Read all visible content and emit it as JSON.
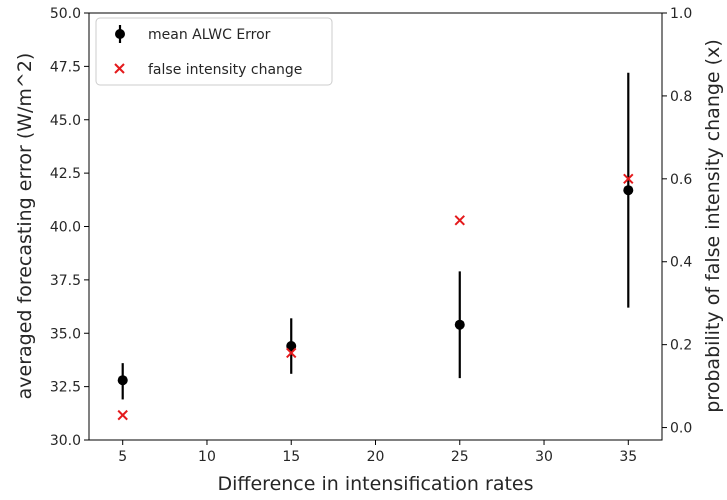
{
  "chart_data": {
    "type": "scatter",
    "xlabel": "Difference in intensification rates",
    "ylabel_left": "averaged forecasting error (W/m^2)",
    "ylabel_right": "probability of false intensity change (x)",
    "xlim": [
      3,
      37
    ],
    "ylim_left": [
      30.0,
      50.0
    ],
    "ylim_right": [
      -0.03,
      1.0
    ],
    "xticks": [
      5,
      10,
      15,
      20,
      25,
      30,
      35
    ],
    "yticks_left": [
      30.0,
      32.5,
      35.0,
      37.5,
      40.0,
      42.5,
      45.0,
      47.5,
      50.0
    ],
    "yticks_right": [
      0.0,
      0.2,
      0.4,
      0.6,
      0.8,
      1.0
    ],
    "grid": false,
    "legend_position": "top-left",
    "series": [
      {
        "name": "mean ALWC Error",
        "axis": "left",
        "marker": "circle",
        "color": "#000000",
        "x": [
          5,
          15,
          25,
          35
        ],
        "y": [
          32.8,
          34.4,
          35.4,
          41.7
        ],
        "yerr_low": [
          31.9,
          33.1,
          32.9,
          36.2
        ],
        "yerr_high": [
          33.6,
          35.7,
          37.9,
          47.2
        ]
      },
      {
        "name": "false intensity change",
        "axis": "right",
        "marker": "x",
        "color": "#e41a1c",
        "x": [
          5,
          15,
          25,
          35
        ],
        "y": [
          0.03,
          0.18,
          0.5,
          0.6
        ]
      }
    ]
  }
}
